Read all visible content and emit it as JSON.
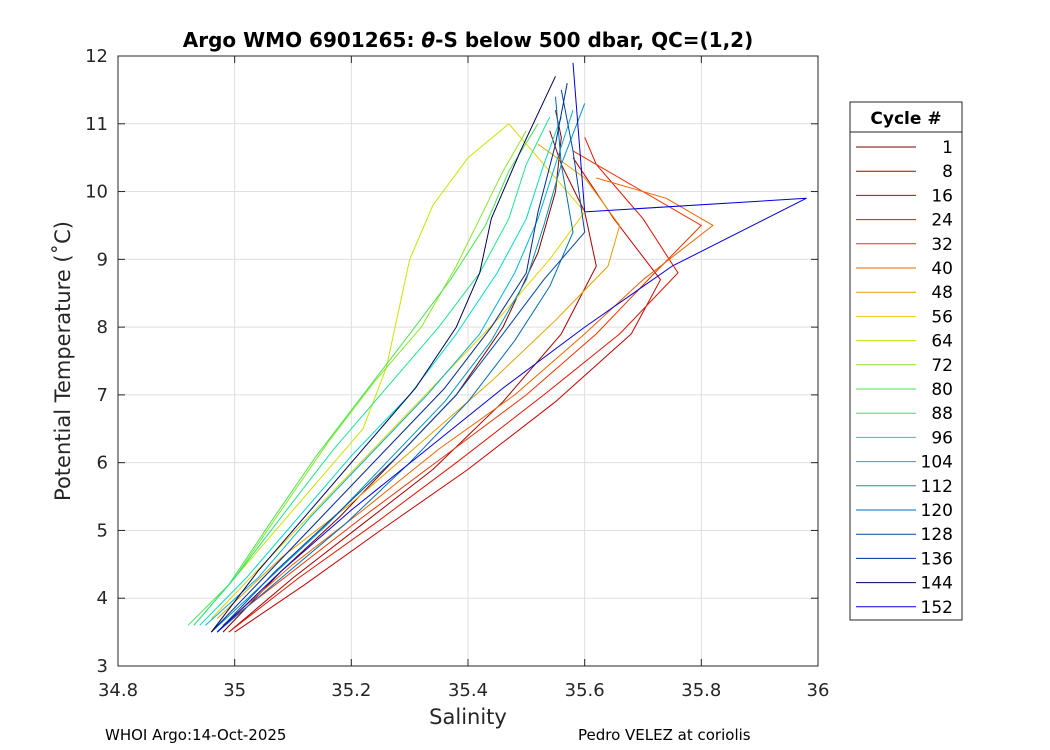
{
  "chart_data": {
    "type": "line",
    "title_prefix": "Argo WMO 6901265: ",
    "title_theta": "θ",
    "title_suffix": "-S below 500 dbar,  QC=(1,2)",
    "xlabel": "Salinity",
    "ylabel": "Potential Temperature (˚C)",
    "xlim": [
      34.8,
      36
    ],
    "ylim": [
      3,
      12
    ],
    "xticks": [
      "34.8",
      "35",
      "35.2",
      "35.4",
      "35.6",
      "35.8",
      "36"
    ],
    "yticks": [
      "3",
      "4",
      "5",
      "6",
      "7",
      "8",
      "9",
      "10",
      "11",
      "12"
    ],
    "grid": true,
    "legend_title": "Cycle #",
    "legend_position": "outside-right",
    "legend_entries": [
      {
        "label": "1",
        "color": "#7f0000"
      },
      {
        "label": "8",
        "color": "#a50000"
      },
      {
        "label": "16",
        "color": "#c80000"
      },
      {
        "label": "24",
        "color": "#e61400"
      },
      {
        "label": "32",
        "color": "#f03200"
      },
      {
        "label": "40",
        "color": "#f06400"
      },
      {
        "label": "48",
        "color": "#e6a000"
      },
      {
        "label": "56",
        "color": "#e6d200"
      },
      {
        "label": "64",
        "color": "#c8e600"
      },
      {
        "label": "72",
        "color": "#8ce628"
      },
      {
        "label": "80",
        "color": "#46e650"
      },
      {
        "label": "88",
        "color": "#1ee68c"
      },
      {
        "label": "96",
        "color": "#00dcc8"
      },
      {
        "label": "104",
        "color": "#00b4dc"
      },
      {
        "label": "112",
        "color": "#0096be"
      },
      {
        "label": "120",
        "color": "#006eb4"
      },
      {
        "label": "128",
        "color": "#0046aa"
      },
      {
        "label": "136",
        "color": "#002896"
      },
      {
        "label": "144",
        "color": "#00005a"
      },
      {
        "label": "152",
        "color": "#0000e6"
      }
    ],
    "series": [
      {
        "name": "1",
        "color": "#7f0000",
        "x": [
          34.98,
          35.08,
          35.18,
          35.28,
          35.38,
          35.46,
          35.52,
          35.55,
          35.56,
          35.55
        ],
        "y": [
          3.5,
          4.4,
          5.2,
          6.1,
          7.0,
          8.0,
          9.1,
          10.0,
          10.8,
          11.2
        ]
      },
      {
        "name": "8",
        "color": "#a50000",
        "x": [
          34.99,
          35.1,
          35.22,
          35.34,
          35.46,
          35.56,
          35.62,
          35.6,
          35.56,
          35.54
        ],
        "y": [
          3.5,
          4.3,
          5.1,
          5.9,
          6.9,
          7.9,
          8.9,
          9.7,
          10.4,
          10.9
        ]
      },
      {
        "name": "16",
        "color": "#c80000",
        "x": [
          35.0,
          35.12,
          35.25,
          35.4,
          35.55,
          35.68,
          35.73,
          35.65,
          35.58
        ],
        "y": [
          3.5,
          4.2,
          5.0,
          5.9,
          6.9,
          7.9,
          8.7,
          9.6,
          10.5
        ]
      },
      {
        "name": "24",
        "color": "#e61400",
        "x": [
          34.99,
          35.11,
          35.24,
          35.38,
          35.53,
          35.66,
          35.76,
          35.7,
          35.62,
          35.6
        ],
        "y": [
          3.5,
          4.3,
          5.1,
          6.0,
          7.0,
          7.9,
          8.8,
          9.6,
          10.4,
          10.8
        ]
      },
      {
        "name": "32",
        "color": "#f03200",
        "x": [
          34.98,
          35.1,
          35.22,
          35.36,
          35.5,
          35.62,
          35.72,
          35.8,
          35.68,
          35.58
        ],
        "y": [
          3.6,
          4.4,
          5.2,
          6.1,
          7.0,
          7.9,
          8.8,
          9.5,
          10.1,
          10.6
        ]
      },
      {
        "name": "40",
        "color": "#f06400",
        "x": [
          34.98,
          35.1,
          35.22,
          35.35,
          35.48,
          35.6,
          35.7,
          35.82,
          35.74,
          35.62
        ],
        "y": [
          3.6,
          4.5,
          5.3,
          6.2,
          7.0,
          7.9,
          8.7,
          9.5,
          9.9,
          10.2
        ]
      },
      {
        "name": "48",
        "color": "#e6a000",
        "x": [
          34.97,
          35.08,
          35.2,
          35.32,
          35.44,
          35.55,
          35.64,
          35.66,
          35.6,
          35.52
        ],
        "y": [
          3.7,
          4.6,
          5.4,
          6.3,
          7.2,
          8.1,
          8.9,
          9.5,
          10.2,
          10.7
        ]
      },
      {
        "name": "56",
        "color": "#e6d200",
        "x": [
          34.96,
          35.06,
          35.16,
          35.26,
          35.36,
          35.46,
          35.54,
          35.6,
          35.52,
          35.47
        ],
        "y": [
          3.7,
          4.6,
          5.5,
          6.4,
          7.3,
          8.2,
          9.0,
          9.7,
          10.5,
          11.0
        ]
      },
      {
        "name": "64",
        "color": "#c8e600",
        "x": [
          34.94,
          35.02,
          35.12,
          35.22,
          35.26,
          35.28,
          35.3,
          35.34,
          35.4,
          35.47
        ],
        "y": [
          3.7,
          4.5,
          5.5,
          6.5,
          7.4,
          8.2,
          9.0,
          9.8,
          10.5,
          11.0
        ]
      },
      {
        "name": "72",
        "color": "#8ce628",
        "x": [
          34.93,
          35.0,
          35.08,
          35.16,
          35.24,
          35.32,
          35.38,
          35.42,
          35.46,
          35.5
        ],
        "y": [
          3.6,
          4.3,
          5.3,
          6.3,
          7.2,
          8.0,
          8.9,
          9.6,
          10.3,
          10.9
        ]
      },
      {
        "name": "80",
        "color": "#46e650",
        "x": [
          34.92,
          34.99,
          35.06,
          35.14,
          35.22,
          35.3,
          35.37,
          35.43,
          35.47,
          35.52
        ],
        "y": [
          3.6,
          4.2,
          5.1,
          6.1,
          7.0,
          7.9,
          8.7,
          9.5,
          10.3,
          11.0
        ]
      },
      {
        "name": "88",
        "color": "#1ee68c",
        "x": [
          34.93,
          35.0,
          35.08,
          35.17,
          35.26,
          35.35,
          35.42,
          35.47,
          35.5,
          35.54
        ],
        "y": [
          3.6,
          4.3,
          5.2,
          6.2,
          7.1,
          8.0,
          8.8,
          9.6,
          10.4,
          11.1
        ]
      },
      {
        "name": "96",
        "color": "#00dcc8",
        "x": [
          34.94,
          35.02,
          35.11,
          35.2,
          35.3,
          35.38,
          35.45,
          35.5,
          35.53,
          35.56
        ],
        "y": [
          3.6,
          4.3,
          5.2,
          6.1,
          7.0,
          7.9,
          8.8,
          9.6,
          10.4,
          11.1
        ]
      },
      {
        "name": "104",
        "color": "#00b4dc",
        "x": [
          34.95,
          35.04,
          35.13,
          35.23,
          35.33,
          35.42,
          35.48,
          35.52,
          35.55,
          35.58
        ],
        "y": [
          3.6,
          4.3,
          5.2,
          6.1,
          7.0,
          7.9,
          8.8,
          9.6,
          10.4,
          11.2
        ]
      },
      {
        "name": "112",
        "color": "#0096be",
        "x": [
          34.96,
          35.06,
          35.16,
          35.26,
          35.36,
          35.44,
          35.5,
          35.53,
          35.56,
          35.6
        ],
        "y": [
          3.5,
          4.3,
          5.1,
          6.0,
          6.9,
          7.8,
          8.7,
          9.5,
          10.4,
          11.3
        ]
      },
      {
        "name": "120",
        "color": "#006eb4",
        "x": [
          34.97,
          35.08,
          35.19,
          35.3,
          35.4,
          35.48,
          35.54,
          35.58,
          35.56,
          35.55
        ],
        "y": [
          3.5,
          4.3,
          5.1,
          6.0,
          6.9,
          7.8,
          8.6,
          9.4,
          10.4,
          11.4
        ]
      },
      {
        "name": "128",
        "color": "#0046aa",
        "x": [
          34.97,
          35.07,
          35.17,
          35.28,
          35.38,
          35.46,
          35.53,
          35.6,
          35.58,
          35.56
        ],
        "y": [
          3.5,
          4.4,
          5.2,
          6.1,
          7.0,
          7.9,
          8.7,
          9.4,
          10.6,
          11.5
        ]
      },
      {
        "name": "136",
        "color": "#002896",
        "x": [
          34.96,
          35.06,
          35.16,
          35.26,
          35.36,
          35.44,
          35.5,
          35.52,
          35.55,
          35.57
        ],
        "y": [
          3.5,
          4.4,
          5.3,
          6.2,
          7.1,
          8.0,
          8.8,
          9.7,
          10.7,
          11.6
        ]
      },
      {
        "name": "144",
        "color": "#00005a",
        "x": [
          34.96,
          35.04,
          35.13,
          35.22,
          35.31,
          35.38,
          35.42,
          35.44,
          35.49,
          35.55
        ],
        "y": [
          3.5,
          4.4,
          5.3,
          6.2,
          7.1,
          8.0,
          8.8,
          9.6,
          10.6,
          11.7
        ]
      },
      {
        "name": "152",
        "color": "#0000e6",
        "x": [
          34.97,
          35.08,
          35.2,
          35.33,
          35.46,
          35.6,
          35.75,
          35.98,
          35.6,
          35.58
        ],
        "y": [
          3.5,
          4.4,
          5.3,
          6.2,
          7.1,
          8.0,
          8.9,
          9.9,
          9.7,
          11.9
        ]
      }
    ]
  },
  "footer": {
    "left": "WHOI Argo:14-Oct-2025",
    "right": "Pedro VELEZ at coriolis"
  }
}
